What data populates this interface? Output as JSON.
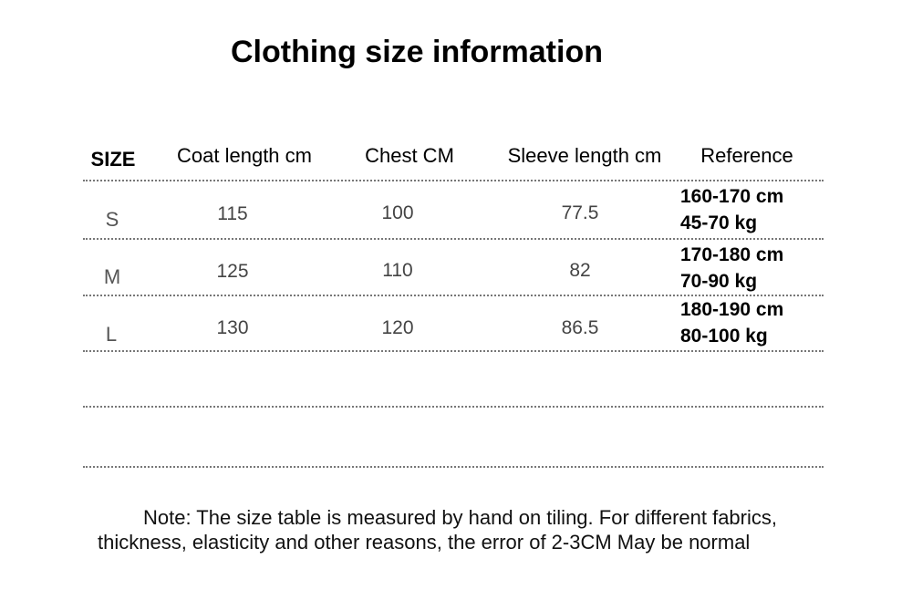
{
  "title": "Clothing size information",
  "table": {
    "headers": [
      "SIZE",
      "Coat length cm",
      "Chest CM",
      "Sleeve length cm",
      "Reference"
    ],
    "rows": [
      {
        "size": "S",
        "coat": "115",
        "chest": "100",
        "sleeve": "77.5",
        "ref_height": "160-170 cm",
        "ref_weight": "45-70 kg"
      },
      {
        "size": "M",
        "coat": "125",
        "chest": "110",
        "sleeve": "82",
        "ref_height": "170-180 cm",
        "ref_weight": "70-90 kg"
      },
      {
        "size": "L",
        "coat": "130",
        "chest": "120",
        "sleeve": "86.5",
        "ref_height": "180-190 cm",
        "ref_weight": "80-100 kg"
      }
    ]
  },
  "note": "Note: The size table is measured by hand on tiling. For different fabrics, thickness, elasticity and other reasons, the error of 2-3CM May be normal"
}
